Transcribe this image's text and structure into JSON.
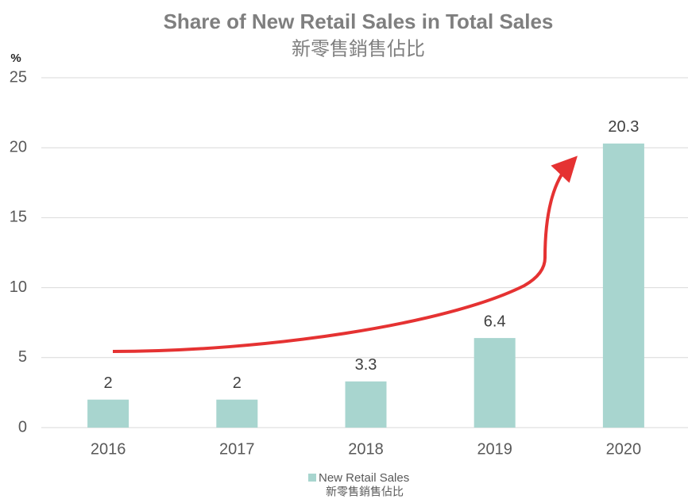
{
  "chart_data": {
    "type": "bar",
    "title": "Share of New Retail Sales in Total Sales",
    "subtitle": "新零售銷售佔比",
    "y_label": "%",
    "categories": [
      "2016",
      "2017",
      "2018",
      "2019",
      "2020"
    ],
    "series": [
      {
        "name": "New Retail Sales",
        "name_zh": "新零售銷售佔比",
        "color": "#a8d5cf",
        "values": [
          2,
          2,
          3.3,
          6.4,
          20.3
        ]
      }
    ],
    "ylim": [
      0,
      25
    ],
    "yticks": [
      0,
      5,
      10,
      15,
      20,
      25
    ],
    "grid": true,
    "legend": "bottom"
  }
}
